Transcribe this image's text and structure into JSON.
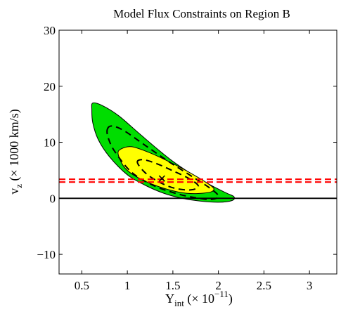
{
  "chart_data": {
    "type": "contour",
    "title": "Model Flux Constraints on Region B",
    "ylabel_main": "v",
    "ylabel_sub": "z",
    "ylabel_rest": " (× 1000 km/s)",
    "xlabel_main": "Y",
    "xlabel_sub": "int",
    "xlabel_rest": " (× 10",
    "xlabel_exp": "−11",
    "xlabel_close": ")",
    "xlim": [
      0.25,
      3.3
    ],
    "ylim": [
      -13.5,
      30
    ],
    "x_ticks": [
      0.5,
      1,
      1.5,
      2,
      2.5,
      3
    ],
    "x_tick_labels": [
      "0.5",
      "1",
      "1.5",
      "2",
      "2.5",
      "3"
    ],
    "y_ticks": [
      -10,
      0,
      10,
      20,
      30
    ],
    "y_tick_labels": [
      "−10",
      "0",
      "10",
      "20",
      "30"
    ],
    "best_fit": {
      "x": 1.38,
      "y": 3.5,
      "marker": "×"
    },
    "zero_line_y": 0,
    "red_dashed_lines_y": [
      2.9,
      3.4
    ],
    "regions": [
      {
        "name": "outer",
        "fill": "#00dd00",
        "stroke": "#000000",
        "dashed": false,
        "points": [
          [
            0.62,
            17.0
          ],
          [
            0.72,
            16.6
          ],
          [
            0.9,
            14.8
          ],
          [
            1.1,
            12.0
          ],
          [
            1.3,
            9.2
          ],
          [
            1.5,
            6.6
          ],
          [
            1.7,
            4.4
          ],
          [
            1.9,
            2.5
          ],
          [
            2.08,
            1.0
          ],
          [
            2.17,
            0.3
          ],
          [
            2.15,
            -0.4
          ],
          [
            2.0,
            -0.7
          ],
          [
            1.8,
            -0.5
          ],
          [
            1.6,
            0.0
          ],
          [
            1.4,
            0.9
          ],
          [
            1.2,
            2.3
          ],
          [
            1.0,
            4.2
          ],
          [
            0.8,
            7.5
          ],
          [
            0.68,
            10.5
          ],
          [
            0.62,
            13.5
          ],
          [
            0.61,
            15.8
          ]
        ]
      },
      {
        "name": "middle",
        "fill": "#ffff00",
        "stroke": "#000000",
        "dashed": false,
        "points": [
          [
            0.9,
            7.8
          ],
          [
            0.93,
            8.8
          ],
          [
            1.05,
            9.2
          ],
          [
            1.25,
            8.1
          ],
          [
            1.45,
            6.6
          ],
          [
            1.65,
            4.9
          ],
          [
            1.85,
            3.0
          ],
          [
            1.95,
            1.7
          ],
          [
            1.88,
            1.0
          ],
          [
            1.65,
            0.9
          ],
          [
            1.4,
            1.8
          ],
          [
            1.15,
            3.4
          ],
          [
            0.98,
            5.3
          ]
        ]
      },
      {
        "name": "dashed-outer",
        "fill": "none",
        "stroke": "#000000",
        "dashed": true,
        "points": [
          [
            0.78,
            12.3
          ],
          [
            0.83,
            12.9
          ],
          [
            0.96,
            12.1
          ],
          [
            1.2,
            9.4
          ],
          [
            1.45,
            6.6
          ],
          [
            1.7,
            4.0
          ],
          [
            1.9,
            1.9
          ],
          [
            2.0,
            0.4
          ],
          [
            1.92,
            -0.2
          ],
          [
            1.75,
            0.1
          ],
          [
            1.55,
            0.8
          ],
          [
            1.3,
            2.2
          ],
          [
            1.05,
            4.6
          ],
          [
            0.86,
            8.4
          ],
          [
            0.79,
            10.8
          ]
        ]
      },
      {
        "name": "dashed-inner",
        "fill": "none",
        "stroke": "#000000",
        "dashed": true,
        "points": [
          [
            1.11,
            6.4
          ],
          [
            1.17,
            6.9
          ],
          [
            1.32,
            6.2
          ],
          [
            1.5,
            4.9
          ],
          [
            1.68,
            3.5
          ],
          [
            1.78,
            2.2
          ],
          [
            1.7,
            1.5
          ],
          [
            1.52,
            1.8
          ],
          [
            1.35,
            2.9
          ],
          [
            1.2,
            4.5
          ]
        ]
      }
    ]
  }
}
